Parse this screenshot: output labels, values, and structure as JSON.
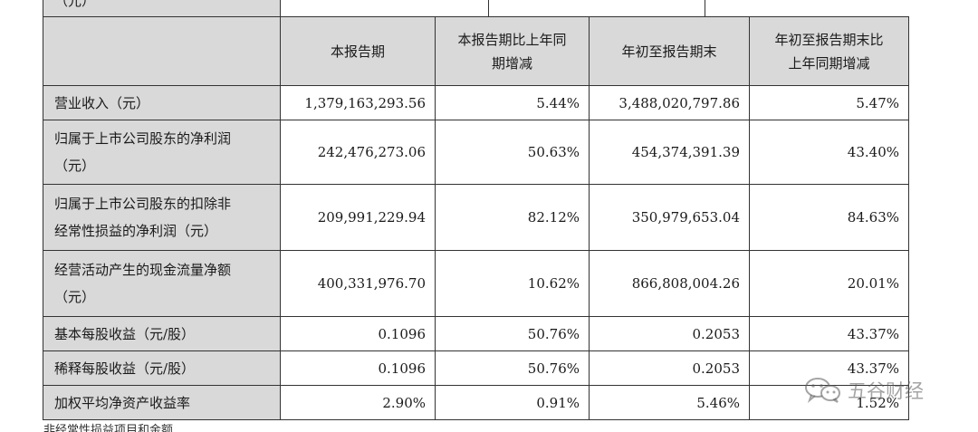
{
  "top_row": {
    "label": "（元）"
  },
  "headers": {
    "h0": "",
    "h1": "本报告期",
    "h2_line1": "本报告期比上年同",
    "h2_line2": "期增减",
    "h3": "年初至报告期末",
    "h4_line1": "年初至报告期末比",
    "h4_line2": "上年同期增减"
  },
  "rows": [
    {
      "label_line1": "营业收入（元）",
      "label_line2": "",
      "current": "1,379,163,293.56",
      "current_change": "5.44%",
      "ytd": "3,488,020,797.86",
      "ytd_change": "5.47%"
    },
    {
      "label_line1": "归属于上市公司股东的净利润",
      "label_line2": "（元）",
      "current": "242,476,273.06",
      "current_change": "50.63%",
      "ytd": "454,374,391.39",
      "ytd_change": "43.40%"
    },
    {
      "label_line1": "归属于上市公司股东的扣除非",
      "label_line2": "经常性损益的净利润（元）",
      "current": "209,991,229.94",
      "current_change": "82.12%",
      "ytd": "350,979,653.04",
      "ytd_change": "84.63%"
    },
    {
      "label_line1": "经营活动产生的现金流量净额",
      "label_line2": "（元）",
      "current": "400,331,976.70",
      "current_change": "10.62%",
      "ytd": "866,808,004.26",
      "ytd_change": "20.01%"
    },
    {
      "label_line1": "基本每股收益（元/股）",
      "label_line2": "",
      "current": "0.1096",
      "current_change": "50.76%",
      "ytd": "0.2053",
      "ytd_change": "43.37%"
    },
    {
      "label_line1": "稀释每股收益（元/股）",
      "label_line2": "",
      "current": "0.1096",
      "current_change": "50.76%",
      "ytd": "0.2053",
      "ytd_change": "43.37%"
    },
    {
      "label_line1": "加权平均净资产收益率",
      "label_line2": "",
      "current": "2.90%",
      "current_change": "0.91%",
      "ytd": "5.46%",
      "ytd_change": "1.52%"
    }
  ],
  "watermark": {
    "text": "五谷财经",
    "icon": "wechat-icon"
  },
  "bottom_note": "非经常性损益项目和金额"
}
